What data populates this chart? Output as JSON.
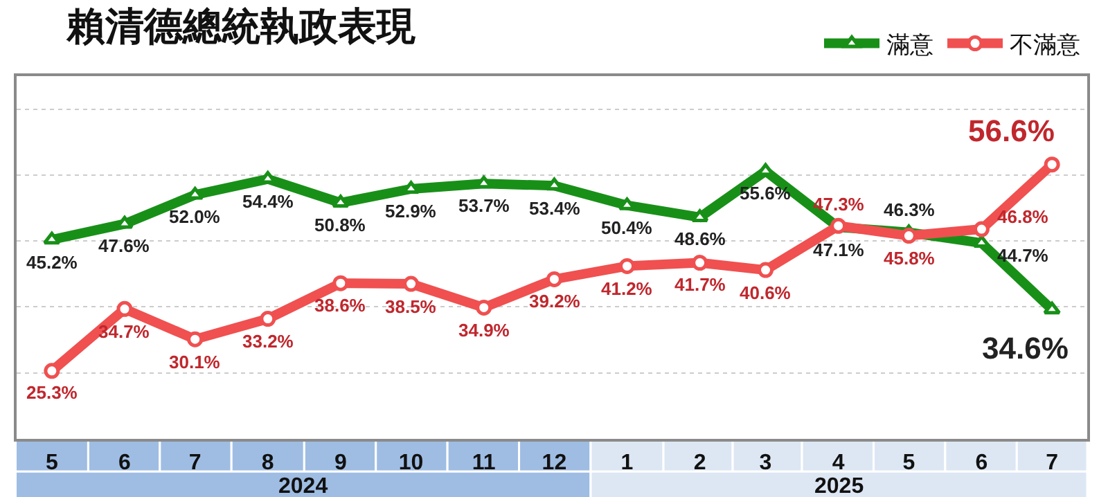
{
  "chart_data": {
    "type": "line",
    "title": "賴清德總統執政表現",
    "x": [
      "2024-05",
      "2024-06",
      "2024-07",
      "2024-08",
      "2024-09",
      "2024-10",
      "2024-11",
      "2024-12",
      "2025-01",
      "2025-02",
      "2025-03",
      "2025-04",
      "2025-05",
      "2025-06",
      "2025-07"
    ],
    "xlim": [
      "2024-04-16",
      "2025-07-16"
    ],
    "xticks": [
      {
        "value": "2024-05",
        "label": "5"
      },
      {
        "value": "2024-06",
        "label": "6"
      },
      {
        "value": "2024-07",
        "label": "7"
      },
      {
        "value": "2024-08",
        "label": "8"
      },
      {
        "value": "2024-09",
        "label": "9"
      },
      {
        "value": "2024-10",
        "label": "10"
      },
      {
        "value": "2024-11",
        "label": "11"
      },
      {
        "value": "2024-12",
        "label": "12"
      },
      {
        "value": "2025-01",
        "label": "1"
      },
      {
        "value": "2025-02",
        "label": "2"
      },
      {
        "value": "2025-03",
        "label": "3"
      },
      {
        "value": "2025-04",
        "label": "4"
      },
      {
        "value": "2025-05",
        "label": "5"
      },
      {
        "value": "2025-06",
        "label": "6"
      },
      {
        "value": "2025-07",
        "label": "7"
      }
    ],
    "ylim": [
      15,
      70
    ],
    "yticks": [
      {
        "value": 25,
        "label": null
      },
      {
        "value": 35,
        "label": null
      },
      {
        "value": 45,
        "label": null
      },
      {
        "value": 55,
        "label": null
      },
      {
        "value": 65,
        "label": null
      }
    ],
    "tick_labels": "x",
    "grid": "y",
    "legend": "top right",
    "line_style": "solid",
    "annotations": [
      "2024",
      "2025"
    ],
    "series": [
      {
        "name": "滿意",
        "color": "#189018",
        "marker": "triangle",
        "values": [
          45.2,
          47.6,
          52.0,
          54.4,
          50.8,
          52.9,
          53.7,
          53.4,
          50.4,
          48.6,
          55.6,
          47.1,
          46.3,
          44.7,
          34.6
        ],
        "value_labels": [
          "45.2%",
          "47.6%",
          "52.0%",
          "54.4%",
          "50.8%",
          "52.9%",
          "53.7%",
          "53.4%",
          "50.4%",
          "48.6%",
          "55.6%",
          "47.1%",
          "46.3%",
          "44.7%",
          "34.6%"
        ]
      },
      {
        "name": "不滿意",
        "color": "#f05050",
        "marker": "circle",
        "values": [
          25.3,
          34.7,
          30.1,
          33.2,
          38.6,
          38.5,
          34.9,
          39.2,
          41.2,
          41.7,
          40.6,
          47.3,
          45.8,
          46.8,
          56.6
        ],
        "value_labels": [
          "25.3%",
          "34.7%",
          "30.1%",
          "33.2%",
          "38.6%",
          "38.5%",
          "34.9%",
          "39.2%",
          "41.2%",
          "41.7%",
          "40.6%",
          "47.3%",
          "45.8%",
          "46.8%",
          "56.6%"
        ]
      }
    ]
  }
}
